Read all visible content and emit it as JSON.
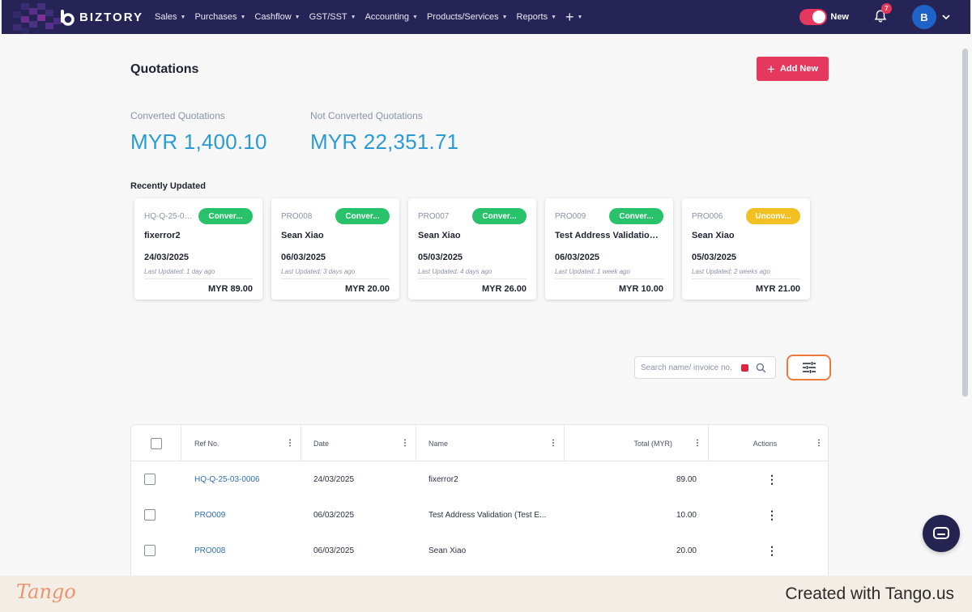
{
  "navbar": {
    "brand": "BIZTORY",
    "menu": [
      {
        "label": "Sales"
      },
      {
        "label": "Purchases"
      },
      {
        "label": "Cashflow"
      },
      {
        "label": "GST/SST"
      },
      {
        "label": "Accounting"
      },
      {
        "label": "Products/Services"
      },
      {
        "label": "Reports"
      }
    ],
    "toggle_label": "New",
    "notification_count": "7",
    "avatar_initial": "B",
    "colors": {
      "bar": "#262457",
      "accent": "#e6375d"
    }
  },
  "page": {
    "title": "Quotations",
    "add_button": "Add New"
  },
  "stats": {
    "converted_label": "Converted Quotations",
    "converted_value": "MYR 1,400.10",
    "not_converted_label": "Not Converted Quotations",
    "not_converted_value": "MYR 22,351.71"
  },
  "recent": {
    "title": "Recently Updated",
    "cards": [
      {
        "ref": "HQ-Q-25-03-0006",
        "status": "Conver...",
        "name": "fixerror2",
        "date": "24/03/2025",
        "updated": "Last Updated: 1 day ago",
        "amount": "MYR 89.00",
        "status_color": "#27c26a"
      },
      {
        "ref": "PRO008",
        "status": "Conver...",
        "name": "Sean Xiao",
        "date": "06/03/2025",
        "updated": "Last Updated: 3 days ago",
        "amount": "MYR 20.00",
        "status_color": "#27c26a"
      },
      {
        "ref": "PRO007",
        "status": "Conver...",
        "name": "Sean Xiao",
        "date": "05/03/2025",
        "updated": "Last Updated: 4 days ago",
        "amount": "MYR 26.00",
        "status_color": "#27c26a"
      },
      {
        "ref": "PRO009",
        "status": "Conver...",
        "name": "Test Address Validation (...",
        "date": "06/03/2025",
        "updated": "Last Updated: 1 week ago",
        "amount": "MYR 10.00",
        "status_color": "#27c26a"
      },
      {
        "ref": "PRO006",
        "status": "Unconv...",
        "name": "Sean Xiao",
        "date": "05/03/2025",
        "updated": "Last Updated: 2 weeks ago",
        "amount": "MYR 21.00",
        "status_color": "#f2c022"
      }
    ]
  },
  "search": {
    "placeholder": "Search name/ invoice no."
  },
  "table": {
    "columns": [
      "Ref No.",
      "Date",
      "Name",
      "Total (MYR)",
      "Actions"
    ],
    "rows": [
      {
        "ref": "HQ-Q-25-03-0006",
        "date": "24/03/2025",
        "name": "fixerror2",
        "total": "89.00"
      },
      {
        "ref": "PRO009",
        "date": "06/03/2025",
        "name": "Test Address Validation (Test E...",
        "total": "10.00"
      },
      {
        "ref": "PRO008",
        "date": "06/03/2025",
        "name": "Sean Xiao",
        "total": "20.00"
      }
    ]
  },
  "footer": {
    "logo": "Tango",
    "credit": "Created with Tango.us"
  }
}
